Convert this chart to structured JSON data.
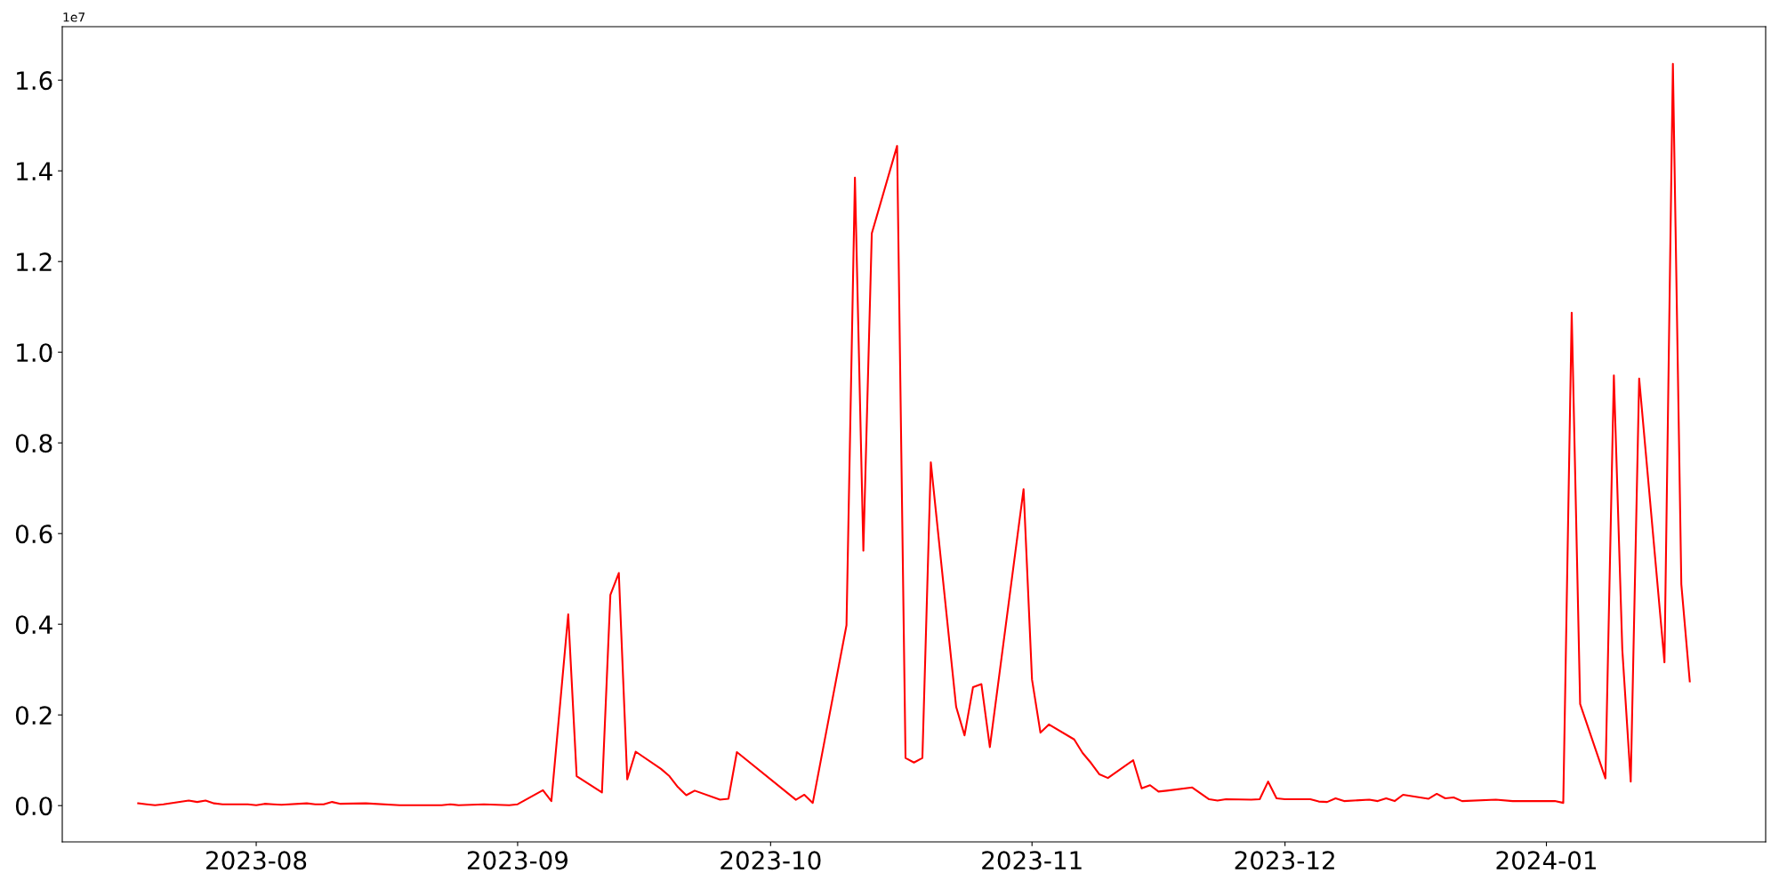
{
  "chart_data": {
    "type": "line",
    "x": [
      "2023-07-18",
      "2023-07-19",
      "2023-07-20",
      "2023-07-21",
      "2023-07-24",
      "2023-07-25",
      "2023-07-26",
      "2023-07-27",
      "2023-07-28",
      "2023-07-31",
      "2023-08-01",
      "2023-08-02",
      "2023-08-03",
      "2023-08-04",
      "2023-08-07",
      "2023-08-08",
      "2023-08-09",
      "2023-08-10",
      "2023-08-11",
      "2023-08-14",
      "2023-08-18",
      "2023-08-21",
      "2023-08-23",
      "2023-08-24",
      "2023-08-25",
      "2023-08-28",
      "2023-08-31",
      "2023-09-01",
      "2023-09-04",
      "2023-09-05",
      "2023-09-07",
      "2023-09-08",
      "2023-09-11",
      "2023-09-12",
      "2023-09-13",
      "2023-09-14",
      "2023-09-15",
      "2023-09-18",
      "2023-09-19",
      "2023-09-20",
      "2023-09-21",
      "2023-09-22",
      "2023-09-25",
      "2023-09-26",
      "2023-09-27",
      "2023-10-04",
      "2023-10-05",
      "2023-10-06",
      "2023-10-10",
      "2023-10-11",
      "2023-10-12",
      "2023-10-13",
      "2023-10-16",
      "2023-10-17",
      "2023-10-18",
      "2023-10-19",
      "2023-10-20",
      "2023-10-23",
      "2023-10-24",
      "2023-10-25",
      "2023-10-26",
      "2023-10-27",
      "2023-10-31",
      "2023-11-01",
      "2023-11-02",
      "2023-11-03",
      "2023-11-06",
      "2023-11-07",
      "2023-11-08",
      "2023-11-09",
      "2023-11-10",
      "2023-11-13",
      "2023-11-14",
      "2023-11-15",
      "2023-11-16",
      "2023-11-17",
      "2023-11-20",
      "2023-11-22",
      "2023-11-23",
      "2023-11-24",
      "2023-11-27",
      "2023-11-28",
      "2023-11-29",
      "2023-11-30",
      "2023-12-01",
      "2023-12-04",
      "2023-12-05",
      "2023-12-06",
      "2023-12-07",
      "2023-12-08",
      "2023-12-11",
      "2023-12-12",
      "2023-12-13",
      "2023-12-14",
      "2023-12-15",
      "2023-12-18",
      "2023-12-19",
      "2023-12-20",
      "2023-12-21",
      "2023-12-22",
      "2023-12-26",
      "2023-12-28",
      "2024-01-02",
      "2024-01-03",
      "2024-01-04",
      "2024-01-05",
      "2024-01-08",
      "2024-01-09",
      "2024-01-10",
      "2024-01-11",
      "2024-01-12",
      "2024-01-15",
      "2024-01-16",
      "2024-01-17",
      "2024-01-18"
    ],
    "series": [
      {
        "color": "#ff0000",
        "values": [
          0.005,
          0.003,
          0.001,
          0.003,
          0.011,
          0.008,
          0.011,
          0.005,
          0.003,
          0.003,
          0.001,
          0.004,
          0.003,
          0.002,
          0.005,
          0.003,
          0.003,
          0.008,
          0.004,
          0.005,
          0.001,
          0.001,
          0.001,
          0.003,
          0.001,
          0.003,
          0.001,
          0.003,
          0.034,
          0.01,
          0.422,
          0.065,
          0.029,
          0.465,
          0.513,
          0.058,
          0.119,
          0.081,
          0.065,
          0.041,
          0.023,
          0.033,
          0.013,
          0.015,
          0.118,
          0.013,
          0.024,
          0.006,
          0.398,
          1.385,
          0.562,
          1.262,
          1.455,
          0.105,
          0.095,
          0.105,
          0.757,
          0.218,
          0.155,
          0.261,
          0.268,
          0.129,
          0.698,
          0.278,
          0.161,
          0.179,
          0.146,
          0.116,
          0.094,
          0.069,
          0.061,
          0.1,
          0.038,
          0.045,
          0.031,
          0.033,
          0.04,
          0.014,
          0.011,
          0.014,
          0.013,
          0.014,
          0.053,
          0.016,
          0.014,
          0.014,
          0.009,
          0.008,
          0.016,
          0.01,
          0.013,
          0.01,
          0.016,
          0.01,
          0.024,
          0.015,
          0.026,
          0.016,
          0.018,
          0.01,
          0.013,
          0.01,
          0.01,
          0.006,
          1.087,
          0.224,
          0.06,
          0.949,
          0.344,
          0.053,
          0.942,
          0.316,
          1.636,
          0.488,
          0.274
        ]
      }
    ],
    "xlim": [
      "2023-07-09",
      "2024-01-27"
    ],
    "xticks": [
      "2023-08",
      "2023-09",
      "2023-10",
      "2023-11",
      "2023-12",
      "2024-01"
    ],
    "ylim": [
      -0.08,
      1.718
    ],
    "yticks": [
      {
        "value": 0,
        "label": "0.0"
      },
      0.2,
      0.4,
      0.6,
      0.8,
      {
        "value": 1,
        "label": "1.0"
      },
      1.2,
      1.4,
      1.6
    ],
    "annotations": [
      "1e7"
    ],
    "grid": false,
    "legend": false,
    "marker": "none",
    "line_style": "solid"
  }
}
